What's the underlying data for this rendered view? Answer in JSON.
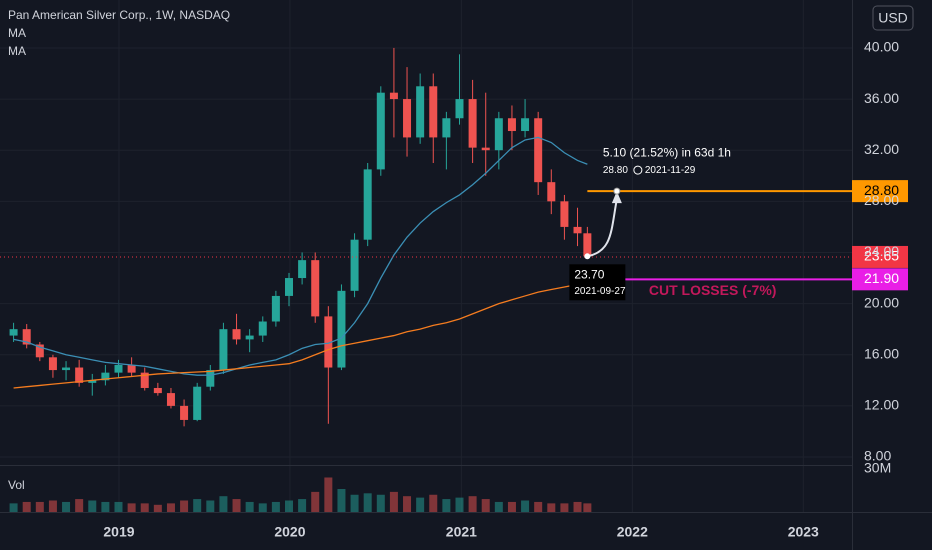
{
  "chart_data": {
    "type": "candlestick",
    "title": "Pan American Silver Corp., 1W, NASDAQ",
    "currency": "USD",
    "up_color": "#26a69a",
    "down_color": "#ef5350",
    "x": [
      "2018-05-21",
      "2018-06-18",
      "2018-07-16",
      "2018-08-13",
      "2018-09-10",
      "2018-10-08",
      "2018-11-05",
      "2018-12-03",
      "2018-12-31",
      "2019-01-28",
      "2019-02-25",
      "2019-03-25",
      "2019-04-22",
      "2019-05-20",
      "2019-06-17",
      "2019-07-15",
      "2019-08-12",
      "2019-09-09",
      "2019-10-07",
      "2019-11-04",
      "2019-12-02",
      "2019-12-30",
      "2020-01-27",
      "2020-02-24",
      "2020-03-23",
      "2020-04-20",
      "2020-05-18",
      "2020-06-15",
      "2020-07-13",
      "2020-08-10",
      "2020-09-07",
      "2020-10-05",
      "2020-11-02",
      "2020-11-30",
      "2020-12-28",
      "2021-01-25",
      "2021-02-22",
      "2021-03-22",
      "2021-04-19",
      "2021-05-17",
      "2021-06-14",
      "2021-07-12",
      "2021-08-09",
      "2021-09-06",
      "2021-09-27"
    ],
    "open": [
      17.5,
      18,
      16.8,
      15.8,
      14.8,
      15,
      13.8,
      14,
      14.6,
      15.2,
      14.6,
      13.4,
      13,
      12,
      10.9,
      13.5,
      14.8,
      18,
      17.2,
      17.5,
      18.6,
      20.6,
      22,
      23.4,
      19,
      15,
      21,
      25,
      30.5,
      36.5,
      36,
      33,
      37,
      33,
      34.5,
      36,
      32.2,
      32,
      34.5,
      33.5,
      34.5,
      29.5,
      28,
      26,
      25.5
    ],
    "high": [
      18.5,
      18.4,
      17,
      16,
      15.5,
      15.6,
      14.5,
      15.2,
      15.6,
      15.8,
      15,
      13.8,
      13.4,
      12.5,
      13.8,
      15.2,
      18.5,
      19.2,
      18,
      19,
      21,
      22.4,
      24,
      24,
      19.8,
      21.5,
      25.5,
      31,
      37,
      40,
      38.5,
      38,
      38,
      35,
      39.5,
      37.5,
      36.5,
      35,
      35.5,
      36,
      35,
      30.5,
      28.5,
      27.5,
      26
    ],
    "low": [
      17,
      16.5,
      15.5,
      14.2,
      14,
      13.5,
      12.8,
      13.6,
      14.2,
      14.3,
      13.2,
      12.8,
      11.8,
      10.4,
      10.8,
      13.2,
      14.5,
      16.8,
      16.2,
      17,
      18.2,
      19.8,
      21.5,
      18.5,
      10.6,
      14.8,
      20.5,
      24.5,
      30,
      33,
      31.5,
      32.5,
      31,
      30.5,
      34,
      31,
      30,
      30.5,
      32,
      33,
      28.5,
      27,
      25,
      24.5,
      23.5
    ],
    "close": [
      18,
      16.8,
      15.8,
      14.8,
      15,
      13.8,
      14,
      14.6,
      15.2,
      14.6,
      13.4,
      13,
      12,
      10.9,
      13.5,
      14.8,
      18,
      17.2,
      17.5,
      18.6,
      20.6,
      22,
      23.4,
      19,
      15,
      21,
      25,
      30.5,
      36.5,
      36,
      33,
      37,
      33,
      34.5,
      36,
      32.2,
      32,
      34.5,
      33.5,
      34.5,
      29.5,
      28,
      26,
      25.5,
      23.7
    ],
    "series": [
      {
        "name": "MA",
        "color": "#3b8fb5",
        "values": [
          17.2,
          17.0,
          16.6,
          16.3,
          16.0,
          15.8,
          15.6,
          15.4,
          15.3,
          15.2,
          15.1,
          14.9,
          14.7,
          14.5,
          14.4,
          14.4,
          14.6,
          14.9,
          15.2,
          15.4,
          15.6,
          16.0,
          16.5,
          16.8,
          16.9,
          17.3,
          18.5,
          20,
          22,
          23.8,
          25.2,
          26.3,
          27.2,
          27.9,
          28.5,
          29.3,
          30.2,
          31.2,
          32.2,
          32.8,
          33.0,
          32.6,
          31.8,
          31.2,
          30.9
        ]
      },
      {
        "name": "MA",
        "color": "#f57c1f",
        "values": [
          13.4,
          13.5,
          13.6,
          13.7,
          13.8,
          13.9,
          14.0,
          14.1,
          14.2,
          14.3,
          14.4,
          14.5,
          14.55,
          14.6,
          14.65,
          14.7,
          14.8,
          14.9,
          15.0,
          15.1,
          15.2,
          15.3,
          15.6,
          16.0,
          16.4,
          16.7,
          16.9,
          17.1,
          17.3,
          17.5,
          17.8,
          18.0,
          18.3,
          18.5,
          18.8,
          19.2,
          19.6,
          20.0,
          20.3,
          20.6,
          20.9,
          21.1,
          21.3,
          21.5,
          21.6
        ]
      }
    ],
    "xlim": [
      "2018-04-22",
      "2023-04-15"
    ],
    "xticks": [
      {
        "value": "2019-01-01",
        "label": "2019"
      },
      {
        "value": "2020-01-01",
        "label": "2020"
      },
      {
        "value": "2021-01-01",
        "label": "2021"
      },
      {
        "value": "2022-01-01",
        "label": "2022"
      },
      {
        "value": "2023-01-01",
        "label": "2023"
      }
    ],
    "ylim": [
      7.375,
      43.75
    ],
    "yticks": [
      {
        "value": 8,
        "label": "8.00"
      },
      {
        "value": 12,
        "label": "12.00"
      },
      {
        "value": 16,
        "label": "16.00"
      },
      {
        "value": 20,
        "label": "20.00"
      },
      {
        "value": 24,
        "label": "24.00"
      },
      {
        "value": 28,
        "label": "28.00"
      },
      {
        "value": 32,
        "label": "32.00"
      },
      {
        "value": 36,
        "label": "36.00"
      },
      {
        "value": 40,
        "label": "40.00"
      }
    ],
    "last_price": {
      "value": 23.65,
      "label": "23.65",
      "color": "#f23645"
    },
    "hlines": [
      {
        "value": 28.8,
        "label": "28.80",
        "color": "#ff9800"
      },
      {
        "value": 21.9,
        "label": "21.90",
        "color": "#e91ee6",
        "text": "CUT LOSSES (-7%)",
        "text_color": "#c2185b"
      }
    ],
    "measure": {
      "text": "5.10 (21.52%) in 63d 1h",
      "from": {
        "value": 23.7,
        "label": "23.70",
        "date": "2021-09-27"
      },
      "to": {
        "value": 28.8,
        "label": "28.80",
        "date": "2021-11-29"
      }
    },
    "volume": {
      "label": "Vol",
      "ylim": [
        0,
        32
      ],
      "yticks": [
        {
          "value": 30,
          "label": "30M"
        }
      ],
      "values": [
        6,
        7,
        7,
        8,
        7,
        9,
        8,
        7,
        7,
        6,
        6,
        5,
        6,
        8,
        9,
        8,
        11,
        9,
        7,
        6,
        7,
        8,
        9,
        14,
        24,
        16,
        12,
        13,
        12,
        14,
        11,
        10,
        12,
        9,
        10,
        11,
        9,
        7,
        7,
        8,
        7,
        6,
        6,
        7,
        6
      ]
    }
  }
}
